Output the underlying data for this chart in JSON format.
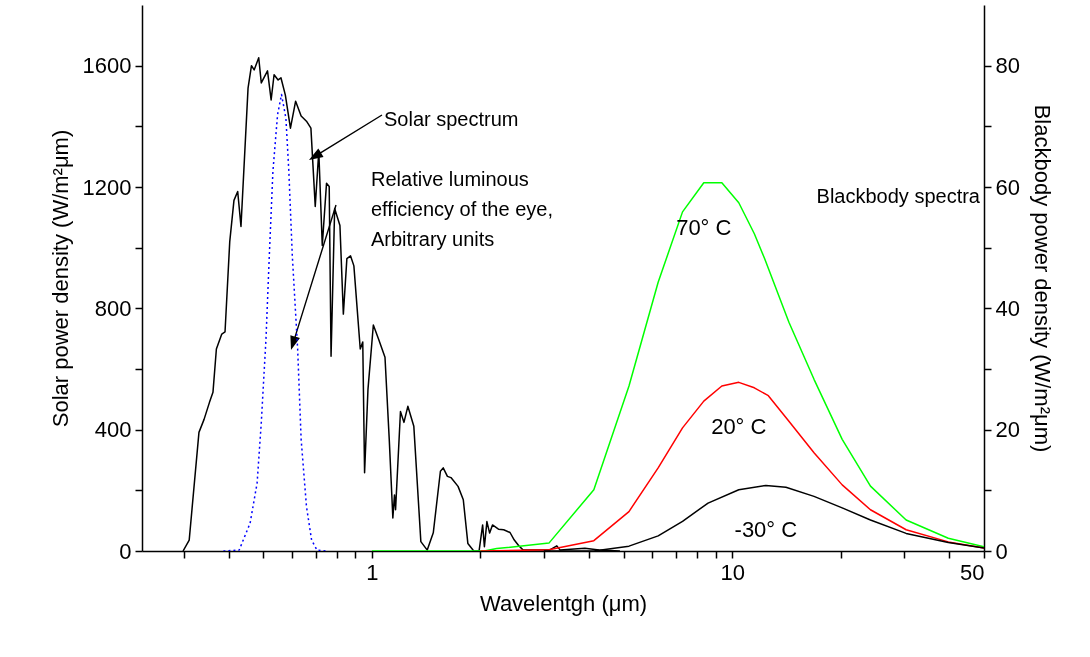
{
  "chart_data": {
    "type": "line",
    "xlabel": "Wavelentgh (μm)",
    "ylabel": "Solar power density (W/m²μm)",
    "y2label": "Blackbody power density (W/m²μm)",
    "log": "x",
    "grid": false,
    "xlim": [
      0.23,
      50
    ],
    "xticks": [
      {
        "value": 0.3,
        "label": null
      },
      {
        "value": 0.4,
        "label": null
      },
      {
        "value": 0.5,
        "label": null
      },
      {
        "value": 0.6,
        "label": null
      },
      {
        "value": 0.7,
        "label": null
      },
      {
        "value": 0.8,
        "label": null
      },
      {
        "value": 0.9,
        "label": null
      },
      1,
      {
        "value": 2,
        "label": null
      },
      {
        "value": 3,
        "label": null
      },
      {
        "value": 4,
        "label": null
      },
      {
        "value": 5,
        "label": null
      },
      {
        "value": 6,
        "label": null
      },
      {
        "value": 7,
        "label": null
      },
      {
        "value": 8,
        "label": null
      },
      {
        "value": 9,
        "label": null
      },
      10,
      {
        "value": 20,
        "label": null
      },
      {
        "value": 30,
        "label": null
      },
      {
        "value": 40,
        "label": null
      },
      50
    ],
    "ylim": [
      0,
      1800
    ],
    "yticks": [
      0,
      {
        "value": 200,
        "label": null
      },
      400,
      {
        "value": 600,
        "label": null
      },
      800,
      {
        "value": 1000,
        "label": null
      },
      1200,
      {
        "value": 1400,
        "label": null
      },
      1600
    ],
    "y2lim": [
      0,
      90
    ],
    "y2ticks": [
      0,
      {
        "value": 10,
        "label": null
      },
      20,
      {
        "value": 30,
        "label": null
      },
      40,
      {
        "value": 50,
        "label": null
      },
      60,
      {
        "value": 70,
        "label": null
      },
      80
    ],
    "series": [
      {
        "color": "#000000",
        "x": [
          0.299,
          0.311,
          0.331,
          0.342,
          0.354,
          0.362,
          0.37,
          0.383,
          0.391,
          0.403,
          0.414,
          0.424,
          0.433,
          0.453,
          0.463,
          0.471,
          0.485,
          0.493,
          0.513,
          0.525,
          0.535,
          0.549,
          0.559,
          0.575,
          0.594,
          0.614,
          0.636,
          0.658,
          0.677,
          0.696,
          0.712,
          0.728,
          0.748,
          0.761,
          0.77,
          0.788,
          0.815,
          0.833,
          0.852,
          0.872,
          0.891,
          0.928,
          0.943,
          0.954,
          0.975,
          1.009,
          1.043,
          1.087,
          1.117,
          1.143,
          1.155,
          1.163,
          1.2,
          1.227,
          1.258,
          1.307,
          1.367,
          1.424,
          1.48,
          1.549,
          1.577,
          1.62,
          1.657,
          1.734,
          1.793,
          1.846,
          1.917,
          1.984,
          2.029,
          2.052,
          2.085,
          2.122,
          2.161,
          2.245,
          2.321,
          2.417,
          2.484,
          2.553,
          2.63,
          3.11,
          3.26,
          3.33,
          3.9,
          4.27,
          4.88
        ],
        "values": [
          0,
          36,
          391,
          434,
          490,
          523,
          666,
          715,
          722,
          1020,
          1156,
          1185,
          1070,
          1526,
          1600,
          1586,
          1626,
          1543,
          1583,
          1487,
          1570,
          1553,
          1560,
          1503,
          1394,
          1483,
          1434,
          1417,
          1394,
          1136,
          1318,
          1007,
          1212,
          1202,
          642,
          1129,
          1073,
          781,
          964,
          973,
          940,
          666,
          689,
          258,
          533,
          745,
          699,
          639,
          368,
          109,
          185,
          136,
          460,
          424,
          477,
          411,
          31,
          3,
          60,
          263,
          274,
          246,
          242,
          213,
          169,
          25,
          0,
          1,
          86,
          14,
          97,
          59,
          86,
          72,
          70,
          61,
          36,
          18,
          3,
          3,
          17,
          3,
          9,
          3,
          0
        ]
      },
      {
        "color": "#0000ff",
        "line_style": "dotted",
        "x": [
          0.387,
          0.428,
          0.459,
          0.48,
          0.493,
          0.508,
          0.519,
          0.531,
          0.547,
          0.561,
          0.577,
          0.588,
          0.601,
          0.622,
          0.636,
          0.658,
          0.68,
          0.704,
          0.744
        ],
        "values": [
          0,
          3,
          92,
          224,
          423,
          699,
          975,
          1251,
          1438,
          1505,
          1427,
          1251,
          975,
          666,
          368,
          147,
          36,
          3,
          0
        ]
      },
      {
        "name": "70° C",
        "color": "#00ff00",
        "axis": "y2",
        "x": [
          1,
          2.05,
          2.22,
          3.1,
          4.13,
          5.17,
          6.23,
          7.28,
          8.34,
          9.36,
          10.43,
          11.52,
          12.3,
          14.37,
          16.87,
          20.2,
          24.2,
          30.4,
          39.8,
          50
        ],
        "values": [
          0,
          0,
          0.4,
          1.3,
          10.1,
          27.2,
          44.3,
          55.9,
          60.7,
          60.7,
          57.4,
          52.3,
          48.2,
          37.7,
          28.3,
          18.4,
          10.7,
          5.1,
          2.1,
          0.7
        ]
      },
      {
        "name": "20° C",
        "color": "#ff0000",
        "axis": "y2",
        "x": [
          2,
          3.1,
          4.13,
          5.17,
          6.23,
          7.28,
          8.34,
          9.36,
          10.43,
          11.52,
          12.6,
          14.37,
          16.87,
          20.2,
          24.2,
          30.4,
          39.8,
          50
        ],
        "values": [
          0,
          0.2,
          1.7,
          6.5,
          13.7,
          20.3,
          24.7,
          27.2,
          27.8,
          26.9,
          25.6,
          21.4,
          16.2,
          10.9,
          6.8,
          3.5,
          1.5,
          0.5
        ]
      },
      {
        "name": "-30° C",
        "color": "#000000",
        "axis": "y2",
        "x": [
          3,
          4.13,
          5.17,
          6.23,
          7.28,
          8.57,
          10.43,
          12.4,
          14.1,
          16.87,
          20.2,
          24.2,
          30.4,
          39.8,
          50
        ],
        "values": [
          0,
          0,
          0.8,
          2.5,
          4.9,
          7.9,
          10.1,
          10.8,
          10.5,
          9.0,
          7.1,
          5.1,
          2.9,
          1.4,
          0.5
        ]
      }
    ],
    "annotations": [
      "Solar spectrum",
      "Relative luminous\nefficiency of the eye,\nArbitrary units",
      "Blackbody spectra"
    ]
  }
}
